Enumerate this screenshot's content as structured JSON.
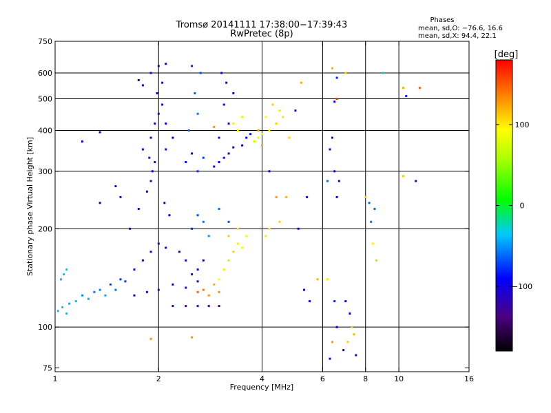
{
  "chart_data": {
    "type": "scatter",
    "title": "Tromsø 20141111 17:38:00−17:39:43",
    "subtitle": "RwPretec (8p)",
    "xlabel": "Frequency [MHz]",
    "ylabel": "Stationary phase Virtual Height [km]",
    "x_scale": "log",
    "y_scale": "log",
    "xlim": [
      1,
      16
    ],
    "ylim": [
      73,
      750
    ],
    "x_ticks": [
      1,
      2,
      4,
      6,
      8,
      10,
      16
    ],
    "x_tick_labels": [
      "1",
      "2",
      "4",
      "6",
      "8",
      "10",
      "16"
    ],
    "y_ticks": [
      75,
      100,
      200,
      300,
      400,
      500,
      600,
      750
    ],
    "y_tick_labels": [
      "75",
      "100",
      "200",
      "300",
      "400",
      "500",
      "600",
      "750"
    ],
    "x_gridlines": [
      2,
      4,
      6,
      8,
      10
    ],
    "y_gridlines": [
      100,
      200,
      300,
      400,
      500,
      600
    ],
    "grid": true,
    "phase_info": {
      "title": "Phases",
      "line_o": "mean, sd,O: −76.6, 16.6",
      "line_x": "mean, sd,X:  94.4, 22.1"
    },
    "colorbar": {
      "label": "[deg]",
      "range": [
        -180,
        180
      ],
      "ticks": [
        100,
        0,
        -100
      ],
      "tick_labels": [
        "100",
        "0",
        "−100"
      ]
    },
    "series": [
      {
        "points": [
          [
            1.02,
            112,
            -40
          ],
          [
            1.05,
            115,
            -30
          ],
          [
            1.08,
            110,
            -35
          ],
          [
            1.1,
            118,
            -45
          ],
          [
            1.15,
            120,
            -40
          ],
          [
            1.2,
            125,
            -50
          ],
          [
            1.25,
            122,
            -45
          ],
          [
            1.3,
            128,
            -60
          ],
          [
            1.35,
            130,
            -55
          ],
          [
            1.4,
            125,
            -45
          ],
          [
            1.45,
            135,
            -70
          ],
          [
            1.5,
            130,
            -60
          ],
          [
            1.55,
            140,
            -80
          ],
          [
            1.6,
            138,
            -75
          ],
          [
            1.04,
            140,
            -40
          ],
          [
            1.06,
            145,
            -35
          ],
          [
            1.08,
            150,
            -30
          ],
          [
            1.7,
            150,
            -100
          ],
          [
            1.8,
            160,
            -110
          ],
          [
            1.9,
            170,
            -105
          ],
          [
            2.0,
            180,
            -110
          ],
          [
            2.1,
            175,
            -100
          ],
          [
            2.3,
            170,
            -115
          ],
          [
            1.7,
            125,
            -100
          ],
          [
            1.85,
            128,
            -110
          ],
          [
            2.0,
            130,
            -115
          ],
          [
            2.2,
            135,
            -110
          ],
          [
            2.4,
            132,
            -105
          ],
          [
            2.6,
            138,
            -115
          ],
          [
            1.65,
            200,
            -100
          ],
          [
            1.75,
            230,
            -110
          ],
          [
            1.85,
            260,
            -115
          ],
          [
            1.9,
            280,
            -105
          ],
          [
            1.95,
            320,
            -110
          ],
          [
            1.8,
            350,
            -100
          ],
          [
            1.9,
            380,
            -105
          ],
          [
            1.95,
            420,
            -110
          ],
          [
            2.0,
            450,
            -115
          ],
          [
            2.05,
            480,
            -105
          ],
          [
            1.98,
            520,
            -100
          ],
          [
            2.05,
            560,
            -110
          ],
          [
            1.9,
            600,
            -105
          ],
          [
            2.0,
            630,
            -110
          ],
          [
            2.1,
            640,
            -100
          ],
          [
            1.75,
            570,
            -115
          ],
          [
            1.8,
            550,
            -110
          ],
          [
            2.1,
            350,
            -100
          ],
          [
            2.2,
            380,
            -90
          ],
          [
            2.1,
            420,
            -95
          ],
          [
            1.88,
            330,
            -110
          ],
          [
            1.92,
            300,
            -105
          ],
          [
            2.08,
            240,
            -100
          ],
          [
            2.15,
            220,
            -90
          ],
          [
            2.4,
            320,
            -85
          ],
          [
            2.5,
            340,
            -90
          ],
          [
            2.6,
            300,
            -80
          ],
          [
            2.7,
            330,
            -75
          ],
          [
            2.45,
            400,
            -70
          ],
          [
            2.6,
            450,
            -60
          ],
          [
            2.55,
            520,
            -65
          ],
          [
            2.65,
            600,
            -70
          ],
          [
            2.5,
            630,
            -80
          ],
          [
            2.9,
            310,
            -90
          ],
          [
            3.0,
            320,
            -95
          ],
          [
            3.1,
            330,
            -100
          ],
          [
            3.2,
            340,
            -105
          ],
          [
            3.3,
            355,
            -100
          ],
          [
            3.5,
            360,
            -95
          ],
          [
            3.6,
            380,
            -90
          ],
          [
            3.7,
            390,
            -85
          ],
          [
            3.0,
            380,
            -100
          ],
          [
            3.2,
            420,
            -105
          ],
          [
            3.1,
            480,
            -95
          ],
          [
            3.3,
            520,
            -100
          ],
          [
            3.15,
            560,
            -95
          ],
          [
            3.05,
            600,
            -100
          ],
          [
            3.8,
            370,
            70
          ],
          [
            3.9,
            380,
            80
          ],
          [
            4.0,
            390,
            90
          ],
          [
            4.2,
            400,
            100
          ],
          [
            4.4,
            420,
            110
          ],
          [
            4.6,
            440,
            105
          ],
          [
            4.5,
            460,
            100
          ],
          [
            4.3,
            480,
            110
          ],
          [
            4.1,
            440,
            95
          ],
          [
            4.0,
            360,
            120
          ],
          [
            3.9,
            400,
            130
          ],
          [
            3.3,
            420,
            100
          ],
          [
            3.4,
            400,
            90
          ],
          [
            3.5,
            440,
            80
          ],
          [
            3.4,
            180,
            100
          ],
          [
            3.3,
            170,
            110
          ],
          [
            3.2,
            160,
            105
          ],
          [
            3.1,
            150,
            100
          ],
          [
            3.0,
            140,
            95
          ],
          [
            3.2,
            190,
            110
          ],
          [
            3.4,
            200,
            100
          ],
          [
            3.6,
            190,
            90
          ],
          [
            3.5,
            175,
            95
          ],
          [
            2.7,
            130,
            140
          ],
          [
            2.8,
            125,
            130
          ],
          [
            2.6,
            128,
            150
          ],
          [
            2.9,
            135,
            120
          ],
          [
            3.0,
            128,
            135
          ],
          [
            2.5,
            200,
            -80
          ],
          [
            2.6,
            220,
            -70
          ],
          [
            2.7,
            210,
            -60
          ],
          [
            2.8,
            190,
            -50
          ],
          [
            3.0,
            230,
            -60
          ],
          [
            3.2,
            210,
            -70
          ],
          [
            2.4,
            160,
            -110
          ],
          [
            2.5,
            145,
            -100
          ],
          [
            2.6,
            150,
            -95
          ],
          [
            2.7,
            160,
            -100
          ],
          [
            2.2,
            116,
            -130
          ],
          [
            2.4,
            116,
            -130
          ],
          [
            2.6,
            116,
            -130
          ],
          [
            2.8,
            116,
            -130
          ],
          [
            3.0,
            116,
            -130
          ],
          [
            1.5,
            270,
            -110
          ],
          [
            1.55,
            250,
            -105
          ],
          [
            1.35,
            240,
            -100
          ],
          [
            1.35,
            395,
            -110
          ],
          [
            1.2,
            370,
            -105
          ],
          [
            1.9,
            92,
            130
          ],
          [
            2.5,
            93,
            130
          ],
          [
            2.9,
            410,
            130
          ],
          [
            4.1,
            190,
            100
          ],
          [
            4.2,
            200,
            95
          ],
          [
            4.5,
            210,
            110
          ],
          [
            6.2,
            280,
            -60
          ],
          [
            6.3,
            350,
            -100
          ],
          [
            6.4,
            380,
            -105
          ],
          [
            6.5,
            300,
            -110
          ],
          [
            6.6,
            250,
            -95
          ],
          [
            6.2,
            140,
            100
          ],
          [
            6.5,
            120,
            -80
          ],
          [
            6.6,
            100,
            -90
          ],
          [
            6.4,
            90,
            130
          ],
          [
            6.3,
            80,
            -100
          ],
          [
            6.9,
            85,
            -105
          ],
          [
            7.1,
            90,
            110
          ],
          [
            6.6,
            500,
            160
          ],
          [
            6.5,
            490,
            -100
          ],
          [
            6.4,
            620,
            120
          ],
          [
            6.6,
            580,
            -80
          ],
          [
            6.7,
            280,
            -100
          ],
          [
            7.0,
            600,
            110
          ],
          [
            7.0,
            120,
            -100
          ],
          [
            7.2,
            110,
            -90
          ],
          [
            7.3,
            100,
            110
          ],
          [
            7.4,
            95,
            120
          ],
          [
            7.5,
            82,
            -100
          ],
          [
            5.3,
            130,
            -100
          ],
          [
            5.5,
            120,
            -95
          ],
          [
            5.8,
            140,
            120
          ],
          [
            5.1,
            200,
            -90
          ],
          [
            5.4,
            250,
            -100
          ],
          [
            5.0,
            460,
            -100
          ],
          [
            4.2,
            300,
            -105
          ],
          [
            4.4,
            250,
            130
          ],
          [
            4.7,
            250,
            120
          ],
          [
            5.2,
            560,
            120
          ],
          [
            4.8,
            380,
            110
          ],
          [
            8.0,
            250,
            110
          ],
          [
            8.2,
            240,
            -60
          ],
          [
            8.5,
            230,
            -60
          ],
          [
            8.4,
            180,
            100
          ],
          [
            8.6,
            160,
            110
          ],
          [
            8.3,
            210,
            -60
          ],
          [
            9.0,
            600,
            -30
          ],
          [
            10.3,
            540,
            120
          ],
          [
            10.5,
            510,
            -80
          ],
          [
            11.5,
            540,
            150
          ],
          [
            11.2,
            280,
            -100
          ],
          [
            10.3,
            290,
            110
          ]
        ]
      }
    ]
  }
}
